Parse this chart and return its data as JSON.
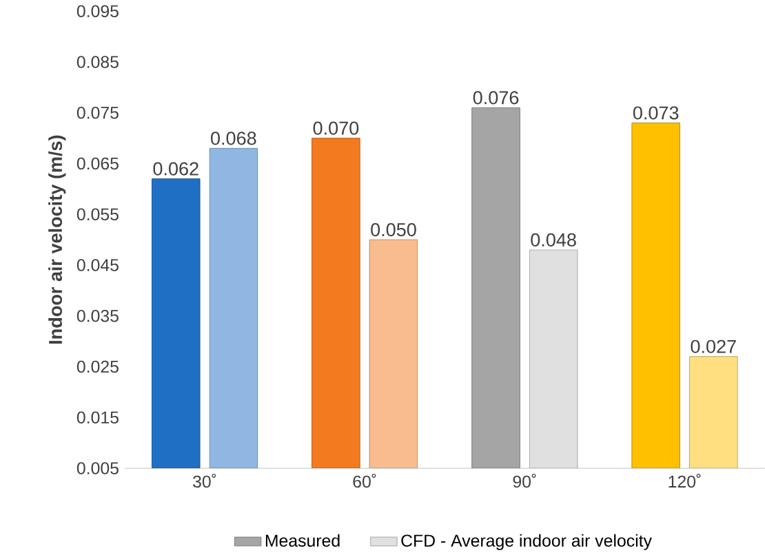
{
  "chart_data": {
    "type": "bar",
    "ylabel": "Indoor air velocity (m/s)",
    "categories": [
      "30˚",
      "60˚",
      "90˚",
      "120˚"
    ],
    "series": [
      {
        "name": "Measured",
        "color": "#a5a5a5",
        "colors": [
          "#1f6fc5",
          "#f47a20",
          "#a5a5a5",
          "#ffc000"
        ],
        "values": [
          0.062,
          0.07,
          0.076,
          0.073
        ],
        "value_labels": [
          "0.062",
          "0.070",
          "0.076",
          "0.073"
        ]
      },
      {
        "name": "CFD - Average indoor air velocity",
        "color": "#e0e0e0",
        "colors": [
          "#8fb7e2",
          "#f9bc8f",
          "#e0e0e0",
          "#ffdf80"
        ],
        "values": [
          0.068,
          0.05,
          0.048,
          0.027
        ],
        "value_labels": [
          "0.068",
          "0.050",
          "0.048",
          "0.027"
        ]
      }
    ],
    "ylim": [
      0.005,
      0.095
    ],
    "yticks": [
      0.005,
      0.015,
      0.025,
      0.035,
      0.045,
      0.055,
      0.065,
      0.075,
      0.085,
      0.095
    ],
    "legend": "bottom",
    "grid": false
  }
}
